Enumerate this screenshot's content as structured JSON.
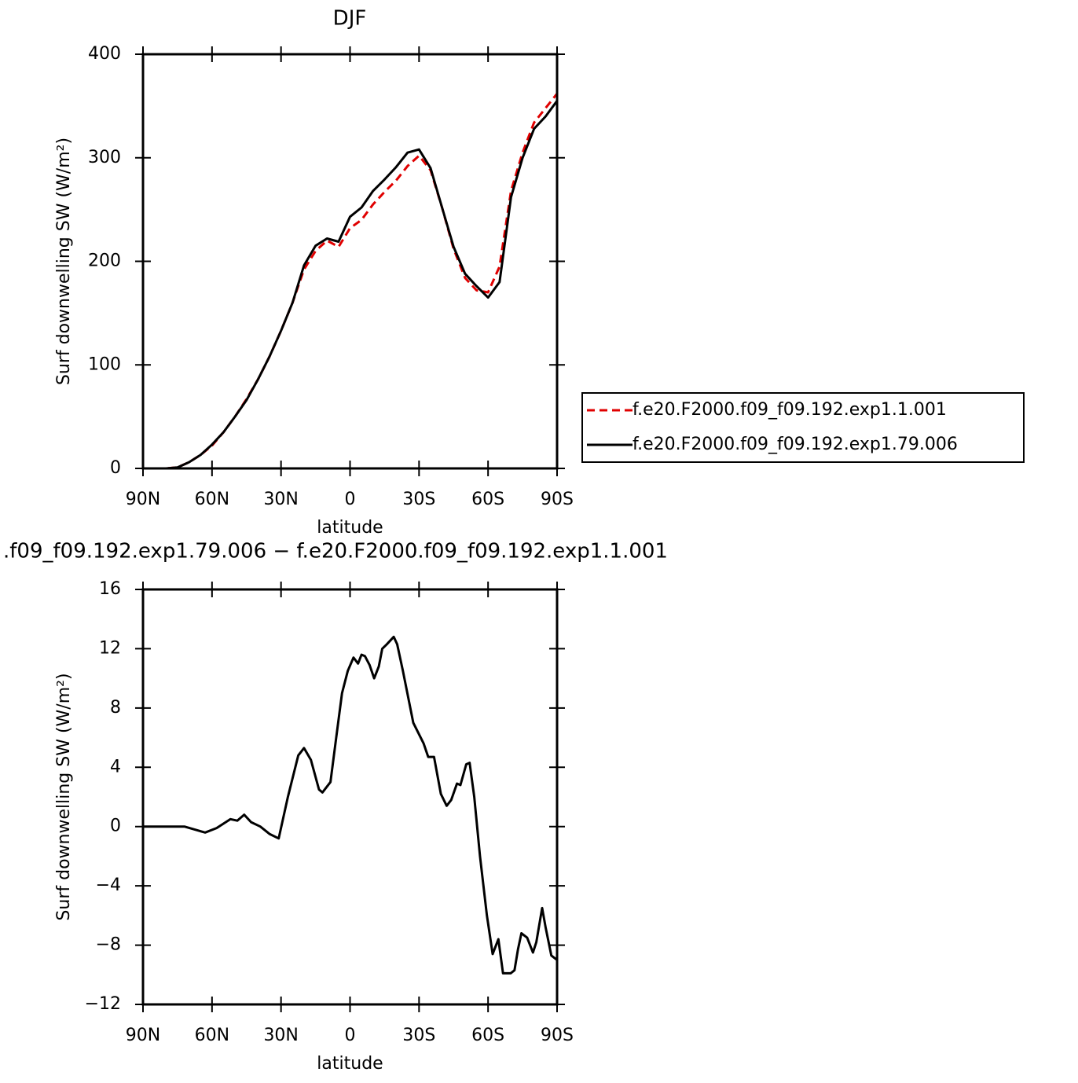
{
  "chart_data": [
    {
      "type": "line",
      "title": "DJF",
      "xlabel": "latitude",
      "ylabel": "Surf downwelling SW (W/m²)",
      "x": [
        90,
        85,
        80,
        75,
        70,
        65,
        60,
        55,
        50,
        45,
        40,
        35,
        30,
        25,
        20,
        15,
        10,
        5,
        0,
        -5,
        -10,
        -15,
        -20,
        -25,
        -30,
        -35,
        -40,
        -45,
        -50,
        -55,
        -60,
        -65,
        -70,
        -75,
        -80,
        -85,
        -90
      ],
      "series": [
        {
          "name": "f.e20.F2000.f09_f09.192.exp1.1.001",
          "color": "#e00000",
          "dash": true,
          "values": [
            0,
            0,
            0,
            1,
            6,
            13,
            22,
            35,
            50,
            67,
            86,
            108,
            133,
            160,
            192,
            210,
            220,
            214,
            232,
            240,
            255,
            267,
            278,
            292,
            302,
            288,
            252,
            212,
            184,
            172,
            170,
            195,
            268,
            305,
            334,
            348,
            362
          ]
        },
        {
          "name": "f.e20.F2000.f09_f09.192.exp1.79.006",
          "color": "#000000",
          "dash": false,
          "values": [
            0,
            0,
            0,
            1,
            6,
            13,
            23,
            35,
            50,
            66,
            86,
            108,
            133,
            160,
            196,
            215,
            222,
            219,
            243,
            252,
            268,
            279,
            291,
            305,
            308,
            290,
            252,
            214,
            188,
            176,
            165,
            180,
            262,
            300,
            328,
            340,
            355
          ]
        }
      ],
      "xlim": [
        90,
        -90
      ],
      "xticks": [
        {
          "value": 90,
          "label": "90N"
        },
        {
          "value": 60,
          "label": "60N"
        },
        {
          "value": 30,
          "label": "30N"
        },
        0,
        {
          "value": -30,
          "label": "30S"
        },
        {
          "value": -60,
          "label": "60S"
        },
        {
          "value": -90,
          "label": "90S"
        }
      ],
      "ylim": [
        0,
        400
      ],
      "yticks": [
        0,
        100,
        200,
        300,
        400
      ],
      "legend": "right"
    },
    {
      "type": "line",
      "title": ".f09_f09.192.exp1.79.006 − f.e20.F2000.f09_f09.192.exp1.1.001",
      "xlabel": "latitude",
      "ylabel": "Surf downwelling SW (W/m²)",
      "x": [
        90,
        80,
        72,
        63,
        58,
        52,
        49,
        46,
        43,
        39,
        35,
        31,
        27,
        22.5,
        20,
        17,
        13.5,
        12,
        8.5,
        6,
        3.5,
        1,
        -1.5,
        -3.5,
        -5,
        -6.5,
        -8.5,
        -10.5,
        -12.5,
        -14,
        -16,
        -19,
        -20.5,
        -23,
        -27.5,
        -32,
        -34,
        -36.5,
        -39.5,
        -42,
        -44,
        -46.5,
        -48,
        -50.5,
        -52,
        -54,
        -56.5,
        -59.5,
        -62,
        -64.5,
        -66.5,
        -69.8,
        -71.5,
        -73,
        -74.5,
        -77,
        -79.5,
        -81,
        -83.5,
        -85,
        -87.5,
        -90
      ],
      "series": [
        {
          "color": "#000000",
          "dash": false,
          "values": [
            0,
            0,
            0,
            -0.4,
            -0.1,
            0.5,
            0.4,
            0.8,
            0.3,
            0,
            -0.5,
            -0.8,
            2,
            4.8,
            5.3,
            4.5,
            2.5,
            2.3,
            3,
            6,
            9,
            10.5,
            11.4,
            11,
            11.6,
            11.5,
            10.9,
            10,
            10.8,
            12,
            12.3,
            12.8,
            12.3,
            10.5,
            7,
            5.6,
            4.7,
            4.7,
            2.2,
            1.4,
            1.8,
            2.9,
            2.8,
            4.2,
            4.3,
            2,
            -2,
            -6,
            -8.6,
            -7.6,
            -9.9,
            -9.9,
            -9.7,
            -8.3,
            -7.2,
            -7.5,
            -8.5,
            -7.8,
            -5.5,
            -6.8,
            -8.7,
            -9
          ]
        }
      ],
      "xlim": [
        90,
        -90
      ],
      "xticks": [
        {
          "value": 90,
          "label": "90N"
        },
        {
          "value": 60,
          "label": "60N"
        },
        {
          "value": 30,
          "label": "30N"
        },
        0,
        {
          "value": -30,
          "label": "30S"
        },
        {
          "value": -60,
          "label": "60S"
        },
        {
          "value": -90,
          "label": "90S"
        }
      ],
      "ylim": [
        -12,
        16
      ],
      "yticks": [
        {
          "value": -12,
          "label": "−12"
        },
        {
          "value": -8,
          "label": "−8"
        },
        {
          "value": -4,
          "label": "−4"
        },
        0,
        4,
        8,
        12,
        16
      ]
    }
  ]
}
